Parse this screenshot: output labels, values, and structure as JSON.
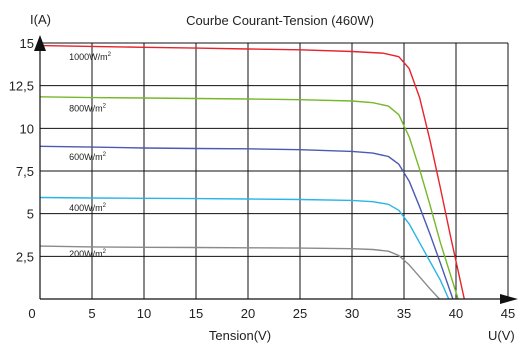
{
  "chart_data": {
    "type": "line",
    "title": "Courbe Courant-Tension (460W)",
    "ylabel": "I(A)",
    "xlabel": "Tension(V)",
    "x_axis_end_label": "U(V)",
    "xlim": [
      0,
      45
    ],
    "ylim": [
      0,
      15
    ],
    "x_ticks": [
      0,
      5,
      10,
      15,
      20,
      25,
      30,
      35,
      40,
      45
    ],
    "x_tick_labels": [
      "0",
      "5",
      "10",
      "15",
      "20",
      "25",
      "30",
      "35",
      "40",
      "45"
    ],
    "y_ticks": [
      2.5,
      5,
      7.5,
      10,
      12.5,
      15
    ],
    "y_tick_labels": [
      "2,5",
      "5",
      "7,5",
      "10",
      "12,5",
      "15"
    ],
    "grid": true,
    "series": [
      {
        "name": "1000W/m",
        "superscript": "2",
        "color": "#e8232b",
        "x": [
          0,
          5,
          10,
          15,
          20,
          25,
          30,
          33,
          34.5,
          35.5,
          36.5,
          37.5,
          38.5,
          39.5,
          40.8
        ],
        "y": [
          14.85,
          14.8,
          14.75,
          14.7,
          14.65,
          14.6,
          14.5,
          14.4,
          14.2,
          13.5,
          11.8,
          9.3,
          6.5,
          3.6,
          0
        ]
      },
      {
        "name": "800W/m",
        "superscript": "2",
        "color": "#76b82a",
        "x": [
          0,
          5,
          10,
          15,
          20,
          25,
          30,
          32,
          33.5,
          34.5,
          35.5,
          36.5,
          37.5,
          38.5,
          40.2
        ],
        "y": [
          11.85,
          11.8,
          11.78,
          11.75,
          11.72,
          11.68,
          11.6,
          11.5,
          11.3,
          10.8,
          9.5,
          7.6,
          5.5,
          3.3,
          0
        ]
      },
      {
        "name": "600W/m",
        "superscript": "2",
        "color": "#4b5bb3",
        "x": [
          0,
          5,
          10,
          15,
          20,
          25,
          30,
          32,
          33.5,
          34.5,
          35.5,
          36.5,
          37.5,
          38.5,
          39.7
        ],
        "y": [
          8.95,
          8.9,
          8.85,
          8.82,
          8.8,
          8.75,
          8.65,
          8.55,
          8.35,
          7.9,
          6.9,
          5.4,
          3.8,
          2.1,
          0
        ]
      },
      {
        "name": "400W/m",
        "superscript": "2",
        "color": "#29b5e8",
        "x": [
          0,
          5,
          10,
          15,
          20,
          25,
          30,
          32,
          33.5,
          34.5,
          35.5,
          36.5,
          37.5,
          38.5,
          39.3
        ],
        "y": [
          5.95,
          5.92,
          5.9,
          5.88,
          5.86,
          5.83,
          5.78,
          5.7,
          5.55,
          5.2,
          4.4,
          3.3,
          2.2,
          1.1,
          0
        ]
      },
      {
        "name": "200W/m",
        "superscript": "2",
        "color": "#8a8a8a",
        "x": [
          0,
          5,
          10,
          15,
          20,
          25,
          30,
          32,
          33.5,
          34.5,
          35.5,
          36.5,
          37.5,
          38.4
        ],
        "y": [
          3.1,
          3.05,
          3.03,
          3.02,
          3.0,
          2.98,
          2.95,
          2.9,
          2.8,
          2.55,
          2.0,
          1.3,
          0.6,
          0
        ]
      }
    ],
    "curve_label_positions": [
      {
        "x": 2.8,
        "y": 14.0
      },
      {
        "x": 2.8,
        "y": 11.0
      },
      {
        "x": 2.8,
        "y": 8.15
      },
      {
        "x": 2.8,
        "y": 5.15
      },
      {
        "x": 2.8,
        "y": 2.45
      }
    ]
  }
}
